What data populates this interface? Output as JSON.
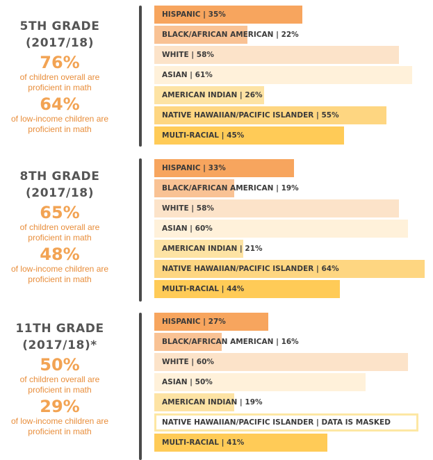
{
  "chart_data": {
    "type": "bar",
    "orientation": "horizontal",
    "categories": [
      "Hispanic",
      "Black/African American",
      "White",
      "Asian",
      "American Indian",
      "Native Hawaiian/Pacific Islander",
      "Multi-racial"
    ],
    "colors": [
      "#f7a55e",
      "#f9c294",
      "#fce3c9",
      "#fff1da",
      "#fde3a4",
      "#fed681",
      "#ffcb57"
    ],
    "xlim": [
      0,
      65
    ],
    "grades": [
      {
        "title_line1": "5TH GRADE",
        "title_line2": "(2017/18)",
        "overall_value": "76%",
        "overall_label_1": "of children overall are",
        "overall_label_2": "proficient in math",
        "lowincome_value": "64%",
        "lowincome_label_1": "of low-income children are",
        "lowincome_label_2": "proficient in math",
        "values": [
          35,
          22,
          58,
          61,
          26,
          55,
          45
        ],
        "labels": [
          "HISPANIC | 35%",
          "BLACK/AFRICAN AMERICAN | 22%",
          "WHITE | 58%",
          "ASIAN | 61%",
          "AMERICAN INDIAN | 26%",
          "NATIVE HAWAIIAN/PACIFIC ISLANDER | 55%",
          "MULTI-RACIAL | 45%"
        ]
      },
      {
        "title_line1": "8TH GRADE",
        "title_line2": "(2017/18)",
        "overall_value": "65%",
        "overall_label_1": "of children overall are",
        "overall_label_2": "proficient in math",
        "lowincome_value": "48%",
        "lowincome_label_1": "of low-income children are",
        "lowincome_label_2": "proficient in math",
        "values": [
          33,
          19,
          58,
          60,
          21,
          64,
          44
        ],
        "labels": [
          "HISPANIC | 33%",
          "BLACK/AFRICAN AMERICAN | 19%",
          "WHITE | 58%",
          "ASIAN | 60%",
          "AMERICAN INDIAN | 21%",
          "NATIVE HAWAIIAN/PACIFIC ISLANDER | 64%",
          "MULTI-RACIAL | 44%"
        ]
      },
      {
        "title_line1": "11TH GRADE",
        "title_line2": "(2017/18)*",
        "overall_value": "50%",
        "overall_label_1": "of children overall are",
        "overall_label_2": "proficient in math",
        "lowincome_value": "29%",
        "lowincome_label_1": "of low-income children are",
        "lowincome_label_2": "proficient in math",
        "values": [
          27,
          16,
          60,
          50,
          19,
          null,
          41
        ],
        "masked": [
          false,
          false,
          false,
          false,
          false,
          true,
          false
        ],
        "labels": [
          "HISPANIC | 27%",
          "BLACK/AFRICAN AMERICAN | 16%",
          "WHITE | 60%",
          "ASIAN | 50%",
          "AMERICAN INDIAN | 19%",
          "NATIVE HAWAIIAN/PACIFIC ISLANDER | DATA IS MASKED",
          "MULTI-RACIAL | 41%"
        ]
      }
    ]
  }
}
